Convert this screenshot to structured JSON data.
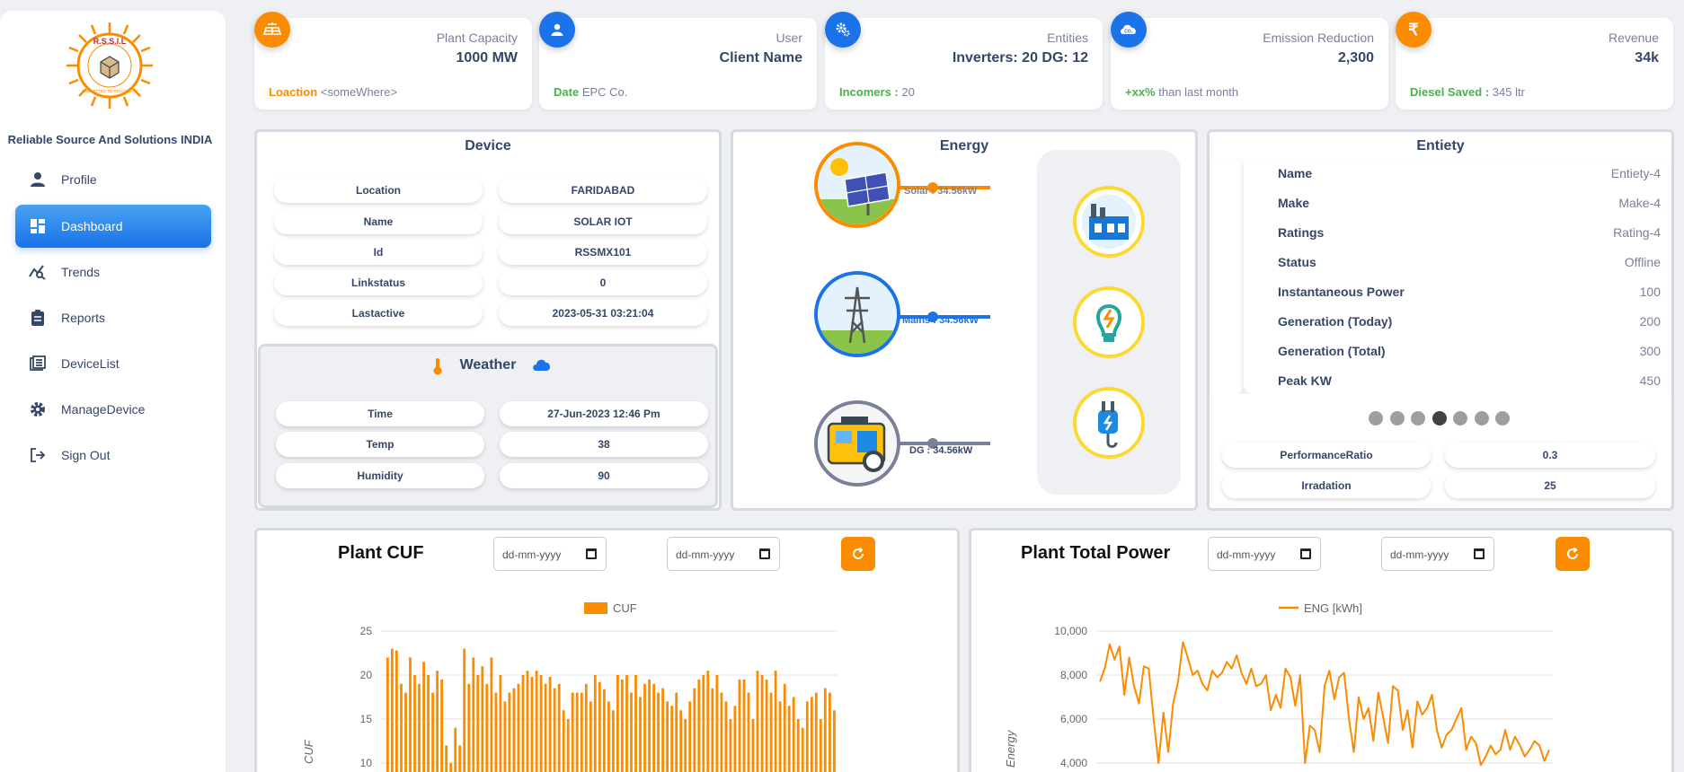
{
  "sidebar": {
    "brand": "Reliable Source And Solutions INDIA",
    "logo_text": "R.S.S.I.L",
    "logo_sub": "COMMITTED TO RELIABILITY",
    "items": [
      {
        "label": "Profile",
        "icon": "person-icon"
      },
      {
        "label": "Dashboard",
        "icon": "dashboard-icon"
      },
      {
        "label": "Trends",
        "icon": "trends-icon"
      },
      {
        "label": "Reports",
        "icon": "clipboard-icon"
      },
      {
        "label": "DeviceList",
        "icon": "list-icon"
      },
      {
        "label": "ManageDevice",
        "icon": "gear-icon"
      },
      {
        "label": "Sign Out",
        "icon": "logout-icon"
      }
    ]
  },
  "stats": [
    {
      "title": "Plant Capacity",
      "value": "1000 MW",
      "foot_key": "Loaction",
      "foot_val": "<someWhere>",
      "color": "#fb8c00",
      "icon": "solar-panel-icon"
    },
    {
      "title": "User",
      "value": "Client Name",
      "foot_key": "Date",
      "foot_val": "EPC Co.",
      "color": "#1a73e8",
      "icon": "user-icon"
    },
    {
      "title": "Entities",
      "value": "Inverters: 20 DG: 12",
      "foot_key": "Incomers :",
      "foot_val": "20",
      "color": "#1a73e8",
      "icon": "gears-icon"
    },
    {
      "title": "Emission Reduction",
      "value": "2,300",
      "foot_key": "+xx%",
      "foot_val": "than last month",
      "color": "#1a73e8",
      "icon": "co2-icon"
    },
    {
      "title": "Revenue",
      "value": "34k",
      "foot_key": "Diesel Saved :",
      "foot_val": "345 ltr",
      "color": "#fb8c00",
      "icon": "rupee-icon"
    }
  ],
  "device": {
    "title": "Device",
    "rows": [
      {
        "k": "Location",
        "v": "FARIDABAD"
      },
      {
        "k": "Name",
        "v": "SOLAR IOT"
      },
      {
        "k": "Id",
        "v": "RSSMX101"
      },
      {
        "k": "Linkstatus",
        "v": "0"
      },
      {
        "k": "Lastactive",
        "v": "2023-05-31 03:21:04"
      }
    ]
  },
  "weather": {
    "title": "Weather",
    "rows": [
      {
        "k": "Time",
        "v": "27-Jun-2023 12:46 Pm"
      },
      {
        "k": "Temp",
        "v": "38"
      },
      {
        "k": "Humidity",
        "v": "90"
      }
    ]
  },
  "energy": {
    "title": "Energy",
    "sources": [
      {
        "label": "Solar : 34.56kW",
        "color": "#fb8c00"
      },
      {
        "label": "Mains : 34.56kW",
        "color": "#1a73e8"
      },
      {
        "label": "DG : 34.56kW",
        "color": "#7b809a"
      }
    ]
  },
  "entity": {
    "title": "Entiety",
    "rows": [
      {
        "k": "Name",
        "v": "Entiety-4"
      },
      {
        "k": "Make",
        "v": "Make-4"
      },
      {
        "k": "Ratings",
        "v": "Rating-4"
      },
      {
        "k": "Status",
        "v": "Offline"
      },
      {
        "k": "Instantaneous Power",
        "v": "100"
      },
      {
        "k": "Generation (Today)",
        "v": "200"
      },
      {
        "k": "Generation (Total)",
        "v": "300"
      },
      {
        "k": "Peak KW",
        "v": "450"
      }
    ],
    "active_dot": 3,
    "dots": 7,
    "extra": [
      {
        "k": "PerformanceRatio",
        "v": "0.3"
      },
      {
        "k": "Irradation",
        "v": "25"
      }
    ]
  },
  "date_placeholder": "dd-mm-yyyy",
  "cuf": {
    "title": "Plant CUF",
    "legend": "CUF"
  },
  "power": {
    "title": "Plant Total Power",
    "legend": "ENG [kWh]"
  },
  "chart_data": [
    {
      "type": "bar",
      "title": "Plant CUF",
      "legend": "CUF",
      "ylabel": "CUF",
      "ylim": [
        10,
        25
      ],
      "yticks": [
        25,
        20,
        15,
        10
      ],
      "color": "#fb8c00",
      "values": [
        22,
        23,
        22.8,
        19,
        18,
        22,
        20,
        19,
        21.5,
        20,
        18,
        20.5,
        19.5,
        12,
        10,
        14,
        12,
        23,
        19,
        22,
        20,
        21,
        19,
        22,
        18,
        20,
        17,
        18,
        18.5,
        19,
        20,
        20.5,
        19.8,
        20.5,
        20,
        19,
        19.8,
        18.5,
        19,
        16,
        15,
        18,
        18,
        18,
        19,
        17,
        20,
        19.2,
        18.4,
        17,
        16,
        20,
        19.5,
        20,
        18,
        20,
        17.5,
        19,
        19.5,
        19,
        18,
        18.5,
        17,
        16.5,
        18,
        16,
        15,
        17,
        18.5,
        19.5,
        20,
        20.5,
        18.5,
        20,
        18,
        17,
        15,
        16.5,
        19.5,
        19.5,
        18,
        15,
        20.5,
        20,
        19.5,
        18,
        20.5,
        17,
        19,
        16.5,
        17.5,
        15,
        14,
        17,
        17.5,
        18,
        15,
        18.5,
        18,
        16
      ]
    },
    {
      "type": "line",
      "title": "Plant Total Power",
      "legend": "ENG [kWh]",
      "ylabel": "Energy",
      "ylim": [
        4000,
        10000
      ],
      "yticks": [
        "10,000",
        "8,000",
        "6,000",
        "4,000"
      ],
      "color": "#fb8c00",
      "values": [
        7700,
        8300,
        9400,
        8700,
        9300,
        7100,
        8800,
        7500,
        6700,
        8400,
        8300,
        6000,
        4000,
        6300,
        4500,
        6700,
        7700,
        9500,
        8800,
        8000,
        8200,
        7600,
        7300,
        8200,
        7900,
        8100,
        8600,
        8300,
        8900,
        8100,
        7600,
        8300,
        7500,
        7600,
        8000,
        6400,
        7100,
        6500,
        8300,
        7900,
        6600,
        8000,
        4000,
        5700,
        5500,
        4500,
        7500,
        8200,
        6900,
        7900,
        8100,
        6000,
        4500,
        7000,
        6000,
        6500,
        5000,
        7200,
        6100,
        4900,
        7500,
        7300,
        5500,
        6400,
        4700,
        6800,
        6200,
        6500,
        7100,
        5500,
        4700,
        5300,
        5500,
        6000,
        6500,
        4600,
        5200,
        4900,
        3900,
        4300,
        4800,
        4400,
        4600,
        5500,
        4600,
        5200,
        4800,
        4300,
        4600,
        5000,
        4800,
        4100,
        4600
      ]
    }
  ]
}
